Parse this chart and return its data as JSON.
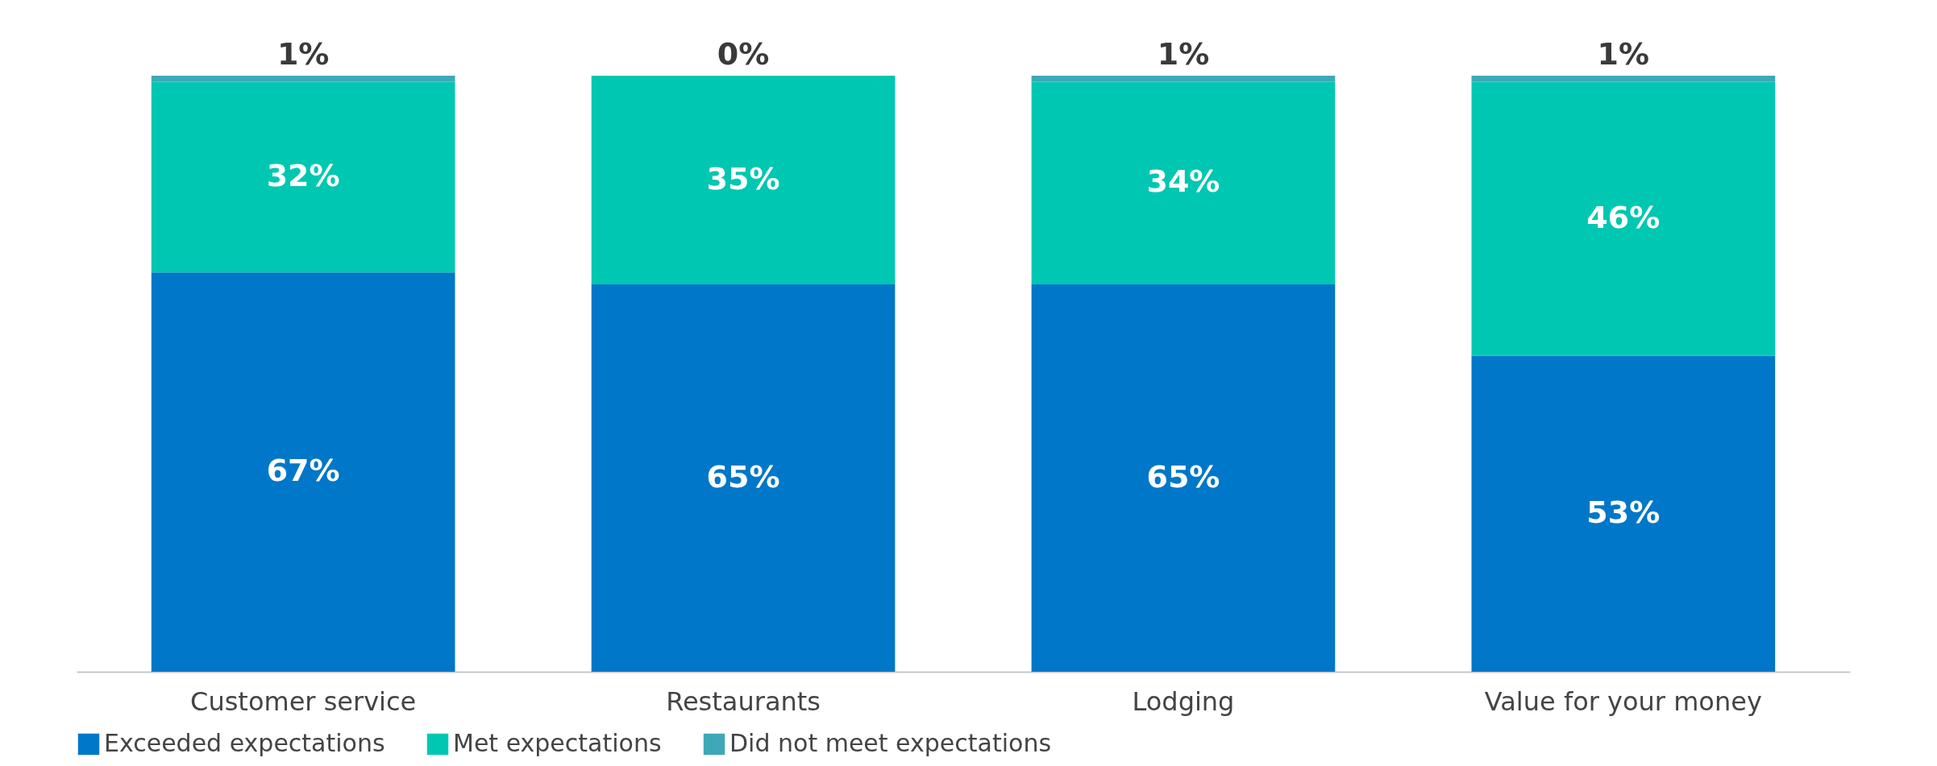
{
  "chart_data": {
    "type": "bar",
    "stacked": true,
    "categories": [
      "Customer service",
      "Restaurants",
      "Lodging",
      "Value for your money"
    ],
    "series": [
      {
        "name": "Exceeded expectations",
        "color": "#0077c8",
        "values": [
          67,
          65,
          65,
          53
        ],
        "value_labels": [
          "67%",
          "65%",
          "65%",
          "53%"
        ]
      },
      {
        "name": "Met expectations",
        "color": "#00c7b1",
        "values": [
          32,
          35,
          34,
          46
        ],
        "value_labels": [
          "32%",
          "35%",
          "34%",
          "46%"
        ]
      },
      {
        "name": "Did not meet expectations",
        "color": "#3ea8b8",
        "values": [
          1,
          0,
          1,
          1
        ],
        "value_labels": [
          "1%",
          "0%",
          "1%",
          "1%"
        ]
      }
    ],
    "ylim": [
      0,
      100
    ],
    "tick_labels": "x",
    "legend": "bottom"
  }
}
